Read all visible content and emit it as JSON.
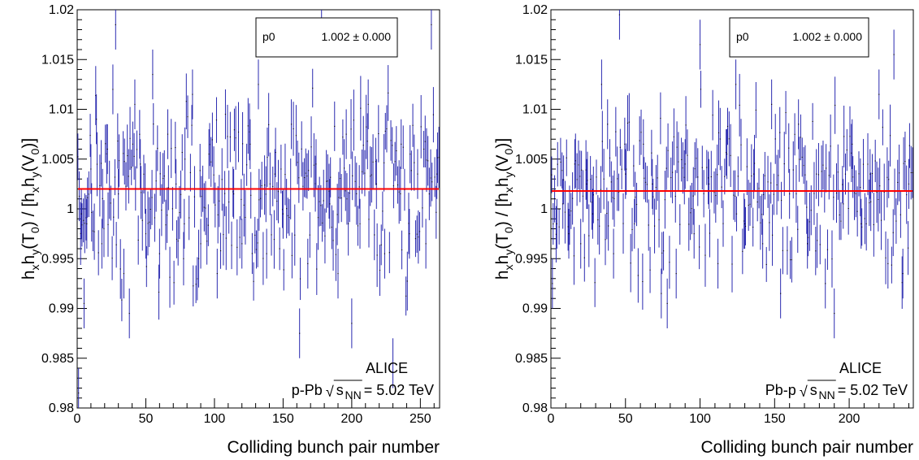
{
  "chart_data": [
    {
      "type": "scatter",
      "experiment": "ALICE",
      "system": "p-Pb",
      "energy_value": "= 5.02 TeV",
      "sqrt_symbol": "√",
      "sqrt_arg": "s",
      "sqrt_sub": "NN",
      "xlabel": "Colliding bunch pair number",
      "xlim": [
        0,
        264
      ],
      "ylim": [
        0.98,
        1.02
      ],
      "x_ticks": [
        "0",
        "50",
        "100",
        "150",
        "200",
        "250"
      ],
      "x_tick_values": [
        0,
        50,
        100,
        150,
        200,
        250
      ],
      "y_ticks": [
        "0.98",
        "0.985",
        "0.99",
        "0.995",
        "1",
        "1.005",
        "1.01",
        "1.015",
        "1.02"
      ],
      "y_tick_values": [
        0.98,
        0.985,
        0.99,
        0.995,
        1.0,
        1.005,
        1.01,
        1.015,
        1.02
      ],
      "fit": {
        "param_name": "p0",
        "param_value": "1.002 ± 0.000",
        "value": 1.002,
        "color": "#ff0000"
      },
      "points_color": "#2a2ab0",
      "n_points": 264,
      "error_half_width": 0.0025,
      "points": [
        {
          "x": 1,
          "y": 0.9815
        },
        {
          "x": 3,
          "y": 0.9995
        },
        {
          "x": 5,
          "y": 0.9905
        },
        {
          "x": 7,
          "y": 0.9985
        },
        {
          "x": 10,
          "y": 1.004
        },
        {
          "x": 14,
          "y": 1.009
        },
        {
          "x": 18,
          "y": 0.9965
        },
        {
          "x": 22,
          "y": 1.006
        },
        {
          "x": 26,
          "y": 1.012
        },
        {
          "x": 28,
          "y": 1.0185
        },
        {
          "x": 30,
          "y": 1.0015
        },
        {
          "x": 34,
          "y": 0.9935
        },
        {
          "x": 38,
          "y": 0.9895
        },
        {
          "x": 42,
          "y": 1.0105
        },
        {
          "x": 46,
          "y": 1.0045
        },
        {
          "x": 50,
          "y": 0.9975
        },
        {
          "x": 55,
          "y": 1.0135
        },
        {
          "x": 60,
          "y": 0.9955
        },
        {
          "x": 66,
          "y": 1.0075
        },
        {
          "x": 72,
          "y": 1.0025
        },
        {
          "x": 78,
          "y": 0.9985
        },
        {
          "x": 84,
          "y": 1.0115
        },
        {
          "x": 90,
          "y": 0.9965
        },
        {
          "x": 96,
          "y": 1.0055
        },
        {
          "x": 102,
          "y": 0.9935
        },
        {
          "x": 108,
          "y": 1.0095
        },
        {
          "x": 114,
          "y": 1.0015
        },
        {
          "x": 120,
          "y": 0.9965
        },
        {
          "x": 126,
          "y": 1.0065
        },
        {
          "x": 132,
          "y": 1.0125
        },
        {
          "x": 138,
          "y": 0.9955
        },
        {
          "x": 144,
          "y": 1.0035
        },
        {
          "x": 150,
          "y": 0.9995
        },
        {
          "x": 156,
          "y": 1.0085
        },
        {
          "x": 162,
          "y": 0.9875
        },
        {
          "x": 168,
          "y": 0.9945
        },
        {
          "x": 174,
          "y": 1.0045
        },
        {
          "x": 178,
          "y": 1.0185
        },
        {
          "x": 184,
          "y": 1.0005
        },
        {
          "x": 190,
          "y": 0.9935
        },
        {
          "x": 196,
          "y": 1.0075
        },
        {
          "x": 200,
          "y": 0.9885
        },
        {
          "x": 206,
          "y": 0.9985
        },
        {
          "x": 212,
          "y": 1.0105
        },
        {
          "x": 218,
          "y": 1.0025
        },
        {
          "x": 224,
          "y": 0.9955
        },
        {
          "x": 230,
          "y": 0.9845
        },
        {
          "x": 236,
          "y": 1.0065
        },
        {
          "x": 242,
          "y": 0.9975
        },
        {
          "x": 248,
          "y": 1.0035
        },
        {
          "x": 254,
          "y": 0.9965
        },
        {
          "x": 258,
          "y": 1.0185
        },
        {
          "x": 262,
          "y": 1.0035
        }
      ]
    },
    {
      "type": "scatter",
      "experiment": "ALICE",
      "system": "Pb-p",
      "energy_value": "= 5.02 TeV",
      "sqrt_symbol": "√",
      "sqrt_arg": "s",
      "sqrt_sub": "NN",
      "xlabel": "Colliding bunch pair number",
      "xlim": [
        0,
        243
      ],
      "ylim": [
        0.98,
        1.02
      ],
      "x_ticks": [
        "0",
        "50",
        "100",
        "150",
        "200"
      ],
      "x_tick_values": [
        0,
        50,
        100,
        150,
        200
      ],
      "y_ticks": [
        "0.98",
        "0.985",
        "0.99",
        "0.995",
        "1",
        "1.005",
        "1.01",
        "1.015",
        "1.02"
      ],
      "y_tick_values": [
        0.98,
        0.985,
        0.99,
        0.995,
        1.0,
        1.005,
        1.01,
        1.015,
        1.02
      ],
      "fit": {
        "param_name": "p0",
        "param_value": "1.002 ± 0.000",
        "value": 1.0018,
        "color": "#ff0000"
      },
      "points_color": "#2a2ab0",
      "n_points": 243,
      "error_half_width": 0.0025,
      "points": [
        {
          "x": 1,
          "y": 0.9925
        },
        {
          "x": 4,
          "y": 0.9985
        },
        {
          "x": 8,
          "y": 1.0005
        },
        {
          "x": 12,
          "y": 0.9975
        },
        {
          "x": 16,
          "y": 1.0045
        },
        {
          "x": 20,
          "y": 0.9965
        },
        {
          "x": 24,
          "y": 1.0025
        },
        {
          "x": 28,
          "y": 0.9995
        },
        {
          "x": 34,
          "y": 1.0125
        },
        {
          "x": 38,
          "y": 1.0085
        },
        {
          "x": 42,
          "y": 0.9955
        },
        {
          "x": 46,
          "y": 1.0195
        },
        {
          "x": 50,
          "y": 1.0035
        },
        {
          "x": 56,
          "y": 0.9985
        },
        {
          "x": 62,
          "y": 1.0065
        },
        {
          "x": 68,
          "y": 1.0025
        },
        {
          "x": 74,
          "y": 0.9915
        },
        {
          "x": 78,
          "y": 0.9905
        },
        {
          "x": 84,
          "y": 0.9935
        },
        {
          "x": 90,
          "y": 1.0045
        },
        {
          "x": 96,
          "y": 0.9975
        },
        {
          "x": 100,
          "y": 1.0165
        },
        {
          "x": 106,
          "y": 1.0025
        },
        {
          "x": 112,
          "y": 0.9945
        },
        {
          "x": 118,
          "y": 1.0055
        },
        {
          "x": 124,
          "y": 1.0125
        },
        {
          "x": 130,
          "y": 0.9985
        },
        {
          "x": 136,
          "y": 1.0035
        },
        {
          "x": 142,
          "y": 0.9965
        },
        {
          "x": 148,
          "y": 1.0105
        },
        {
          "x": 154,
          "y": 0.9915
        },
        {
          "x": 160,
          "y": 1.0015
        },
        {
          "x": 166,
          "y": 1.0085
        },
        {
          "x": 172,
          "y": 0.9965
        },
        {
          "x": 178,
          "y": 1.0035
        },
        {
          "x": 184,
          "y": 0.9925
        },
        {
          "x": 190,
          "y": 0.9895
        },
        {
          "x": 196,
          "y": 1.0005
        },
        {
          "x": 202,
          "y": 1.0065
        },
        {
          "x": 208,
          "y": 0.9985
        },
        {
          "x": 214,
          "y": 1.0035
        },
        {
          "x": 220,
          "y": 1.0115
        },
        {
          "x": 226,
          "y": 0.9945
        },
        {
          "x": 230,
          "y": 1.0155
        },
        {
          "x": 236,
          "y": 0.9935
        },
        {
          "x": 240,
          "y": 1.0025
        }
      ]
    }
  ],
  "ytitle_parts": {
    "h": "h",
    "x": "x",
    "y": "y",
    "T": "(T",
    "zero": "0",
    "mid": ") / [h",
    "V": "(V",
    "close": ")]"
  }
}
